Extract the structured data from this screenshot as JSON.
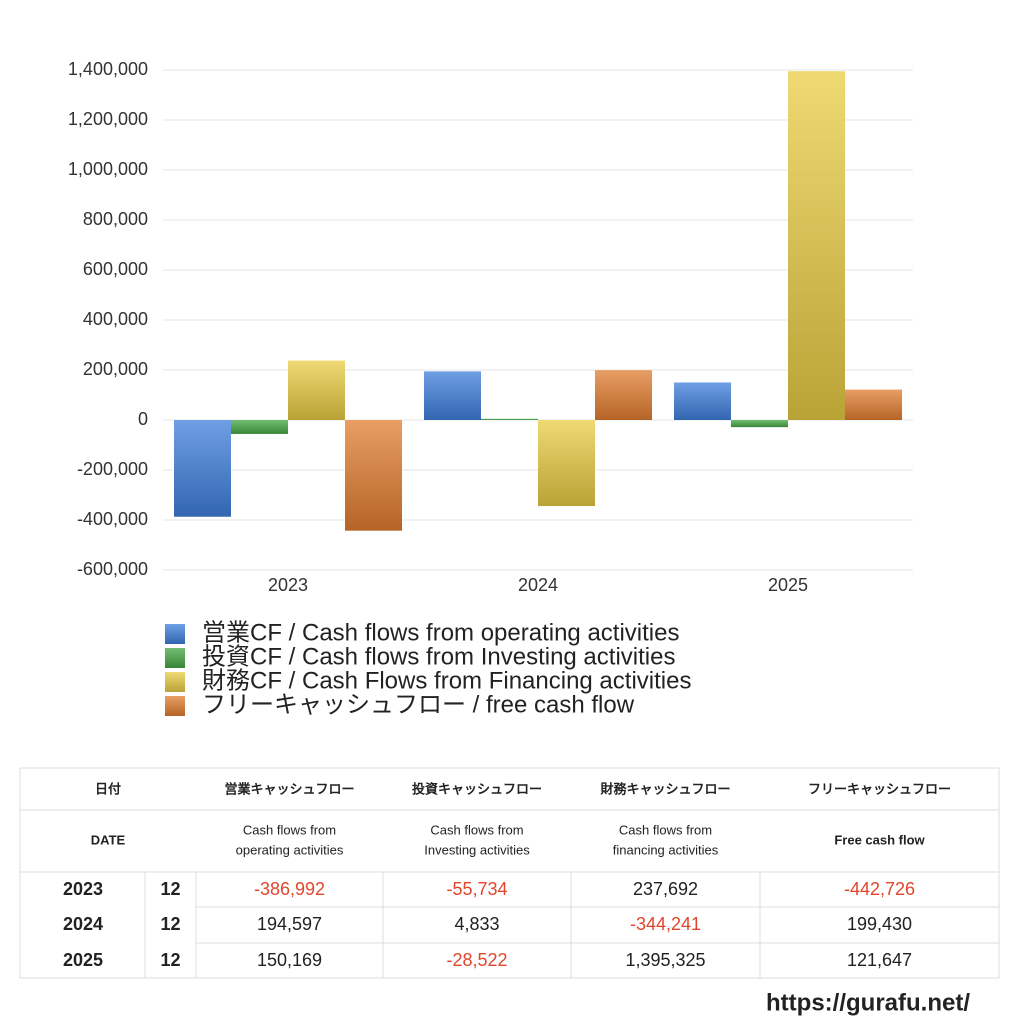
{
  "chart_data": {
    "type": "bar",
    "categories": [
      "2023",
      "2024",
      "2025"
    ],
    "series": [
      {
        "name": "営業CF / Cash flows from operating activities",
        "color": "#3f7fdc",
        "values": [
          -386992,
          194597,
          150169
        ]
      },
      {
        "name": "投資CF / Cash flows from Investing activities",
        "color": "#45a745",
        "values": [
          -55734,
          4833,
          -28522
        ]
      },
      {
        "name": "財務CF / Cash Flows from Financing activities",
        "color": "#e8cc44",
        "values": [
          237692,
          -344241,
          1395325
        ]
      },
      {
        "name": "フリーキャッシュフロー / free cash flow",
        "color": "#e27d30",
        "values": [
          -442726,
          199430,
          121647
        ]
      }
    ],
    "ylim": [
      -600000,
      1400000
    ],
    "yticks": [
      {
        "value": -600000,
        "label": "-600,000"
      },
      {
        "value": -400000,
        "label": "-400,000"
      },
      {
        "value": -200000,
        "label": "-200,000"
      },
      0,
      {
        "value": 200000,
        "label": "200,000"
      },
      {
        "value": 400000,
        "label": "400,000"
      },
      {
        "value": 600000,
        "label": "600,000"
      },
      {
        "value": 800000,
        "label": "800,000"
      },
      {
        "value": 1000000,
        "label": "1,000,000"
      },
      {
        "value": 1200000,
        "label": "1,200,000"
      },
      {
        "value": 1400000,
        "label": "1,400,000"
      }
    ],
    "grid": true
  },
  "table": {
    "header_ja": [
      "日付",
      "営業キャッシュフロー",
      "投資キャッシュフロー",
      "財務キャッシュフロー",
      "フリーキャッシュフロー"
    ],
    "header_en": [
      [
        "DATE"
      ],
      [
        "Cash flows from",
        "operating activities"
      ],
      [
        "Cash flows from",
        "Investing activities"
      ],
      [
        "Cash flows from",
        "financing activities"
      ],
      [
        "Free cash flow"
      ]
    ],
    "rows": [
      [
        "2023",
        "12",
        "-386,992",
        "-55,734",
        "237,692",
        "-442,726"
      ],
      [
        "2024",
        "12",
        "194,597",
        "4,833",
        "-344,241",
        "199,430"
      ],
      [
        "2025",
        "12",
        "150,169",
        "-28,522",
        "1,395,325",
        "121,647"
      ]
    ],
    "negative_color": "#e0462b"
  },
  "footer": "https://gurafu.net/"
}
